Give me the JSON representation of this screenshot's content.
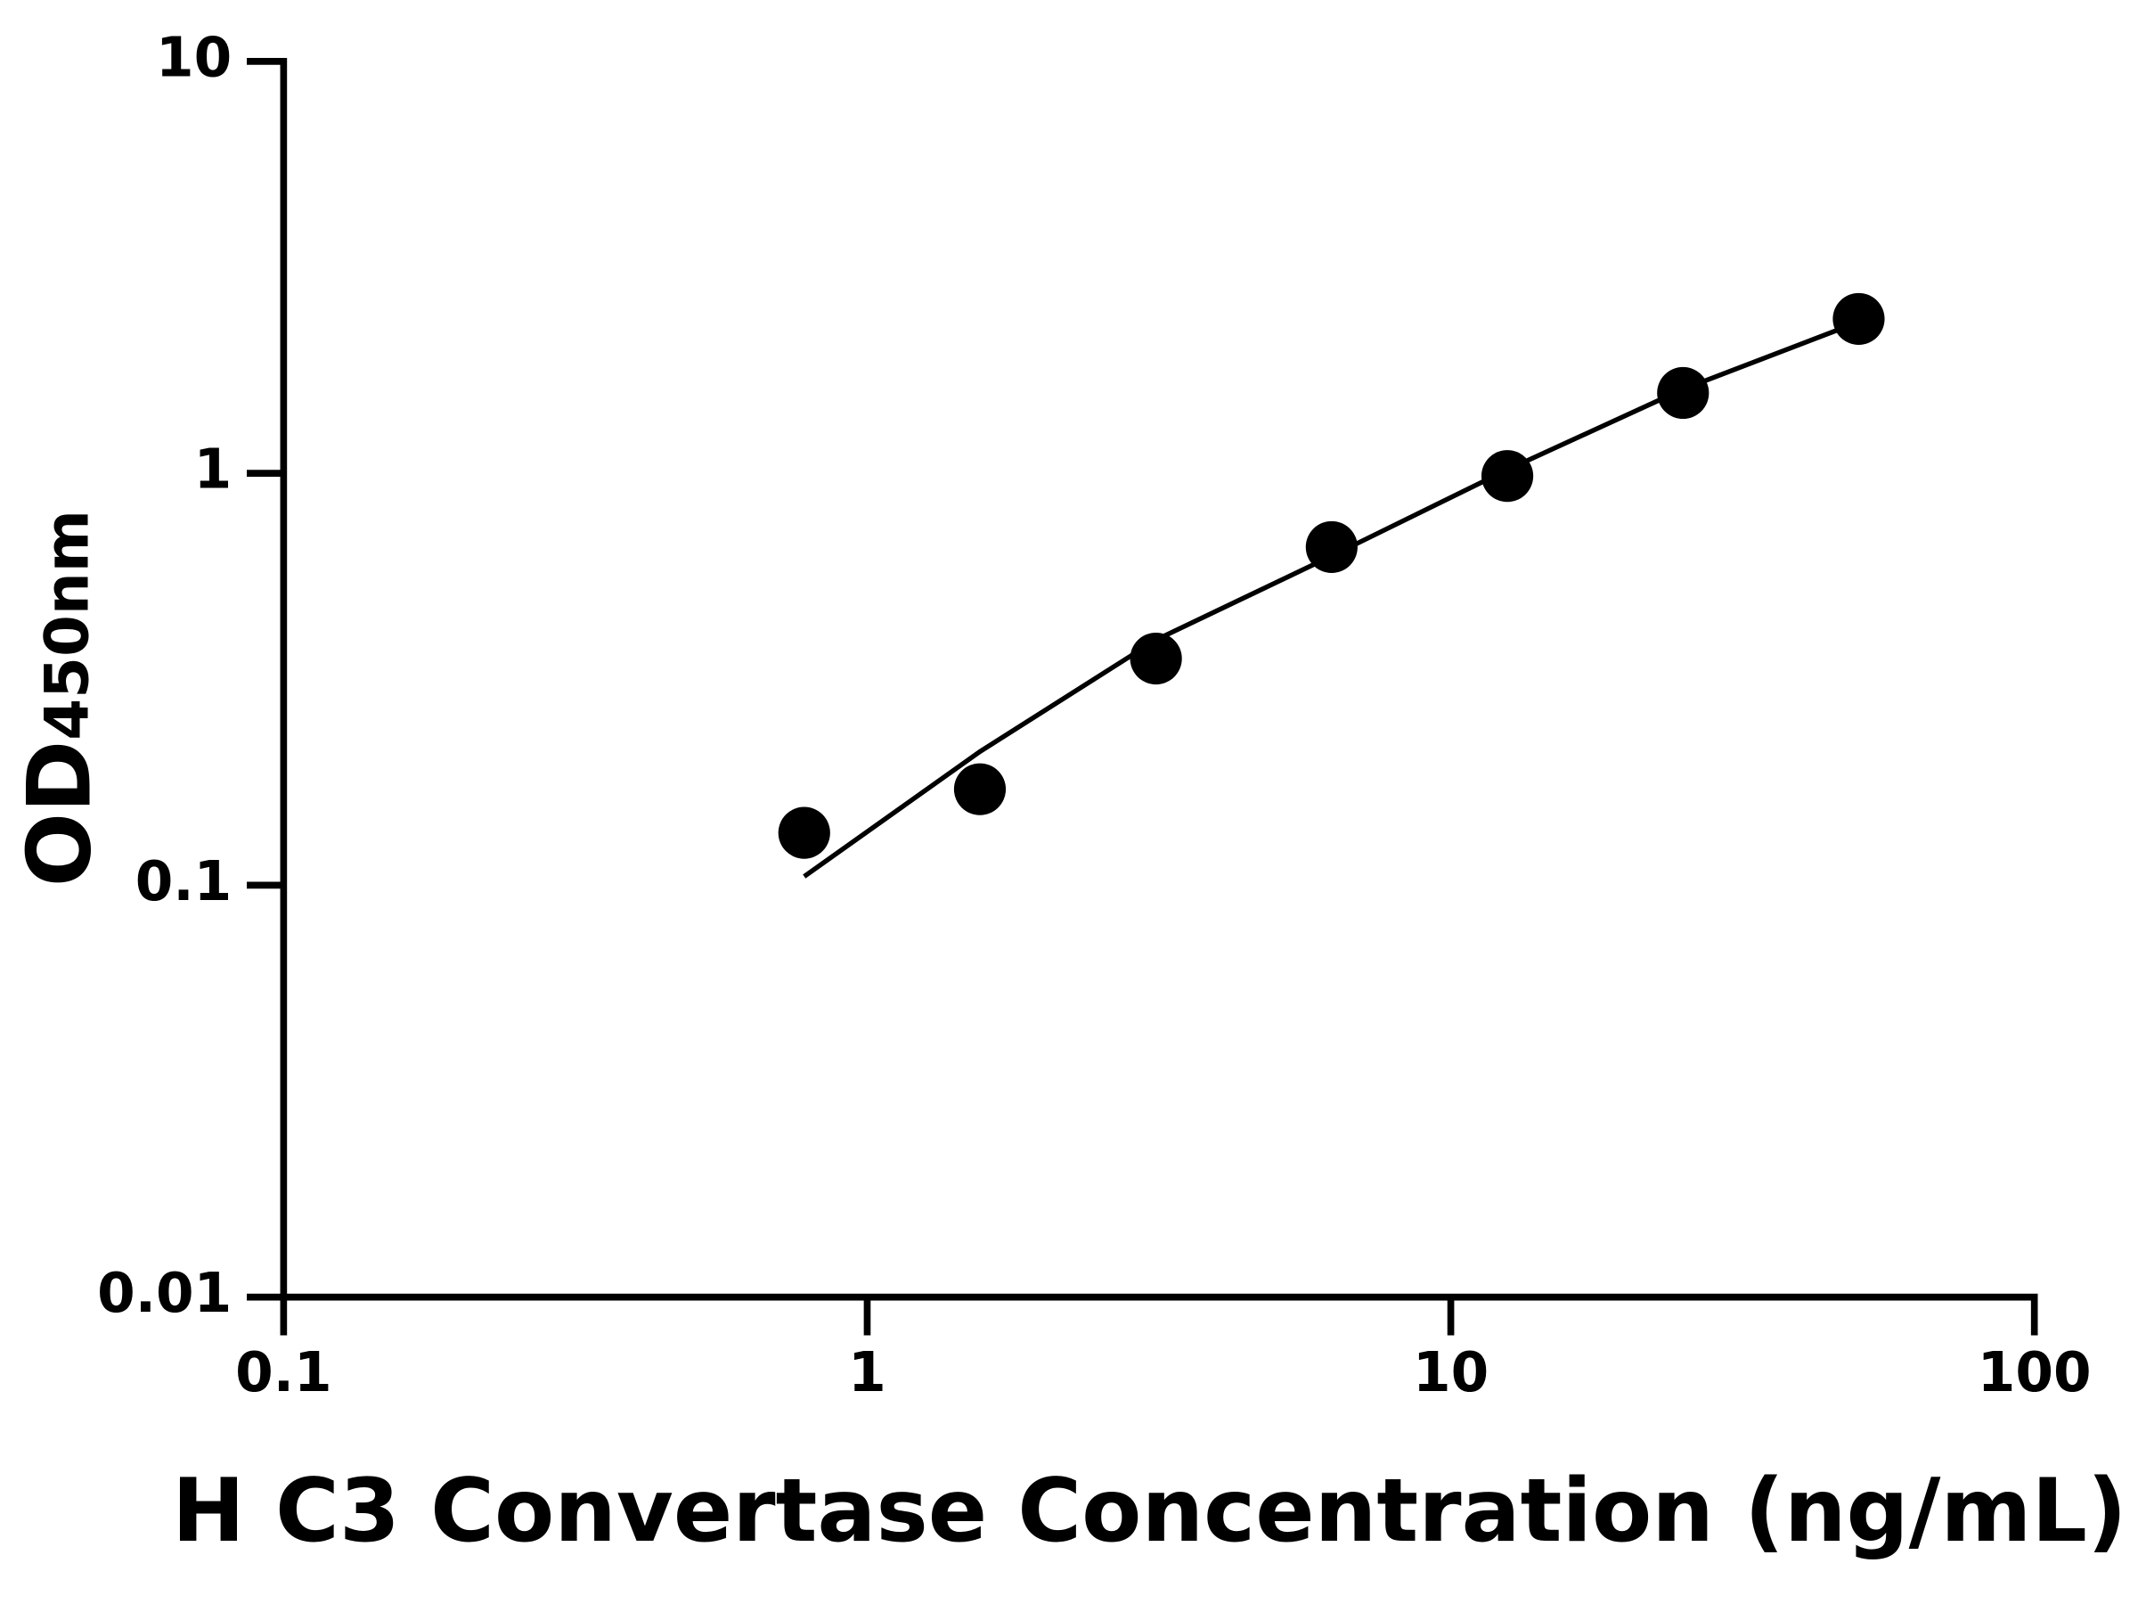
{
  "chart_data": {
    "type": "scatter",
    "x_label": "H C3 Convertase Concentration (ng/mL)",
    "y_label": {
      "main": "OD",
      "subscript": "450nm"
    },
    "xscale": "log",
    "yscale": "log",
    "xlim": [
      0.1,
      100
    ],
    "ylim": [
      0.01,
      10
    ],
    "xticks": [
      0.1,
      1,
      10,
      100
    ],
    "yticks": [
      0.01,
      0.1,
      1,
      10
    ],
    "color": "#000000",
    "series": [
      {
        "mode": "markers",
        "x": [
          0.78,
          1.56,
          3.125,
          6.25,
          12.5,
          25,
          50
        ],
        "values": [
          0.134,
          0.171,
          0.355,
          0.662,
          0.985,
          1.567,
          2.37
        ]
      },
      {
        "mode": "line",
        "x": [
          0.78,
          1.56,
          3.125,
          6.25,
          12.5,
          25,
          50
        ],
        "values": [
          0.105,
          0.211,
          0.394,
          0.63,
          1.02,
          1.6,
          2.33
        ]
      }
    ]
  }
}
